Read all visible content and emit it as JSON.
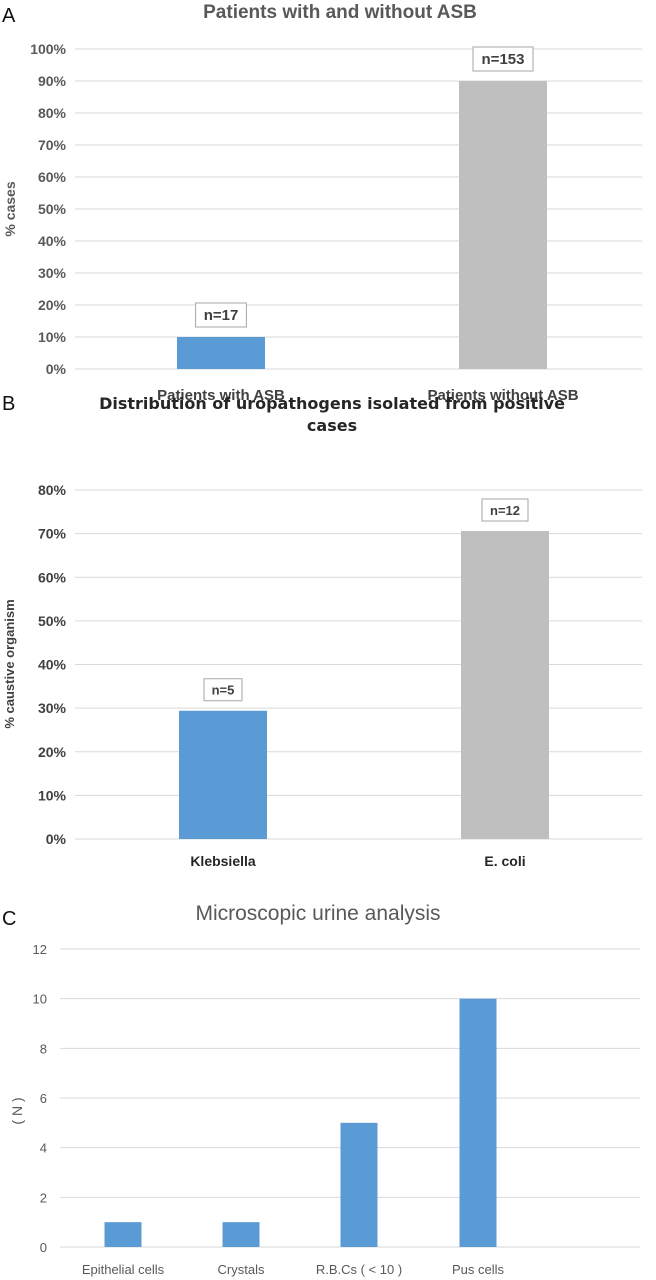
{
  "panels": [
    "A",
    "B",
    "C"
  ],
  "chart_data": [
    {
      "type": "bar",
      "title": "Patients with and without ASB",
      "ylabel": "% cases",
      "xlabel": "",
      "categories": [
        "Patients with  ASB",
        "Patients without ASB"
      ],
      "values": [
        10,
        90
      ],
      "data_labels": [
        "n=17",
        "n=153"
      ],
      "bar_colors": [
        "#5b9bd5",
        "#bfbfbf"
      ],
      "ylim": [
        0,
        100
      ],
      "yticks": [
        "0%",
        "10%",
        "20%",
        "30%",
        "40%",
        "50%",
        "60%",
        "70%",
        "80%",
        "90%",
        "100%"
      ],
      "grid": true
    },
    {
      "type": "bar",
      "title": "Distribution of uropathogens isolated from positive cases",
      "ylabel": "% caustive organism",
      "xlabel": "",
      "categories": [
        "Klebsiella",
        "E. coli"
      ],
      "values": [
        29.4,
        70.6
      ],
      "data_labels": [
        "n=5",
        "n=12"
      ],
      "bar_colors": [
        "#5b9bd5",
        "#bfbfbf"
      ],
      "ylim": [
        0,
        80
      ],
      "yticks": [
        "0%",
        "10%",
        "20%",
        "30%",
        "40%",
        "50%",
        "60%",
        "70%",
        "80%"
      ],
      "grid": true
    },
    {
      "type": "bar",
      "title": "Microscopic urine analysis",
      "ylabel": "( N )",
      "xlabel": "",
      "categories": [
        "Epithelial cells",
        "Crystals",
        "R.B.Cs   ( < 10 )",
        "Pus cells"
      ],
      "values": [
        1,
        1,
        5,
        10
      ],
      "bar_colors": [
        "#5b9bd5",
        "#5b9bd5",
        "#5b9bd5",
        "#5b9bd5"
      ],
      "ylim": [
        0,
        12
      ],
      "yticks": [
        "0",
        "2",
        "4",
        "6",
        "8",
        "10",
        "12"
      ],
      "grid": true
    }
  ]
}
